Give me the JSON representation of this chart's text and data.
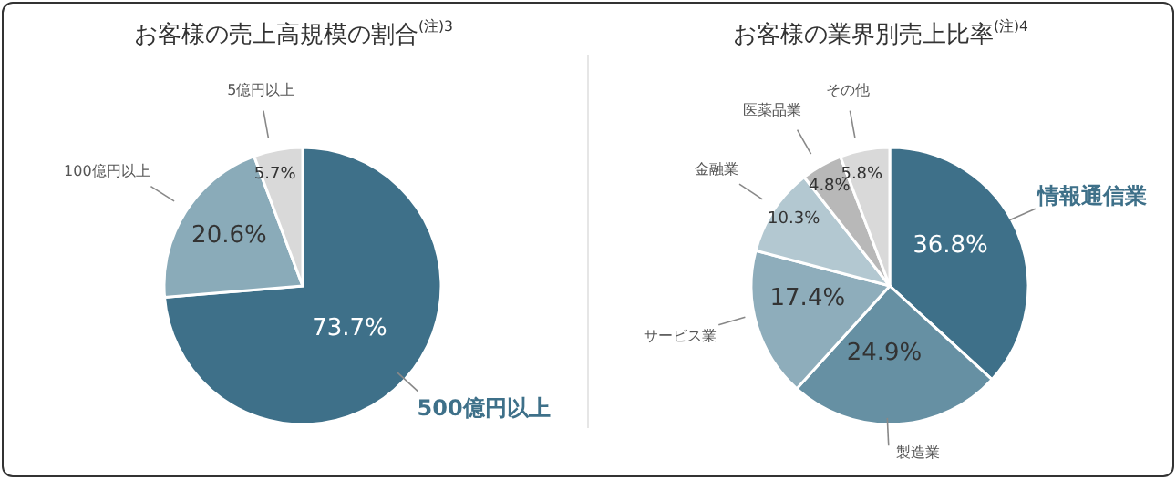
{
  "chart_data": [
    {
      "type": "pie",
      "title": "お客様の売上高規模の割合$^{(注)3}$",
      "categories": [
        "500億円以上",
        "100億円以上",
        "5億円以上"
      ],
      "values": [
        73.7,
        20.6,
        5.7
      ],
      "colors": [
        "#3e7089",
        "#8aabb9",
        "#d9d9d9"
      ],
      "value_labels": [
        "73.7%",
        "20.6%",
        "5.7%"
      ]
    },
    {
      "type": "pie",
      "title": "お客様の業界別売上比率$^{(注)4}$",
      "categories": [
        "情報通信業",
        "製造業",
        "サービス業",
        "金融業",
        "医薬品業",
        "その他"
      ],
      "values": [
        36.8,
        24.9,
        17.4,
        10.3,
        4.8,
        5.8
      ],
      "colors": [
        "#3e7089",
        "#6690a3",
        "#8eadbb",
        "#b3c8d1",
        "#b8b8b8",
        "#d9d9d9"
      ],
      "value_labels": [
        "36.8%",
        "24.9%",
        "17.4%",
        "10.3%",
        "4.8%",
        "5.8%"
      ]
    }
  ]
}
